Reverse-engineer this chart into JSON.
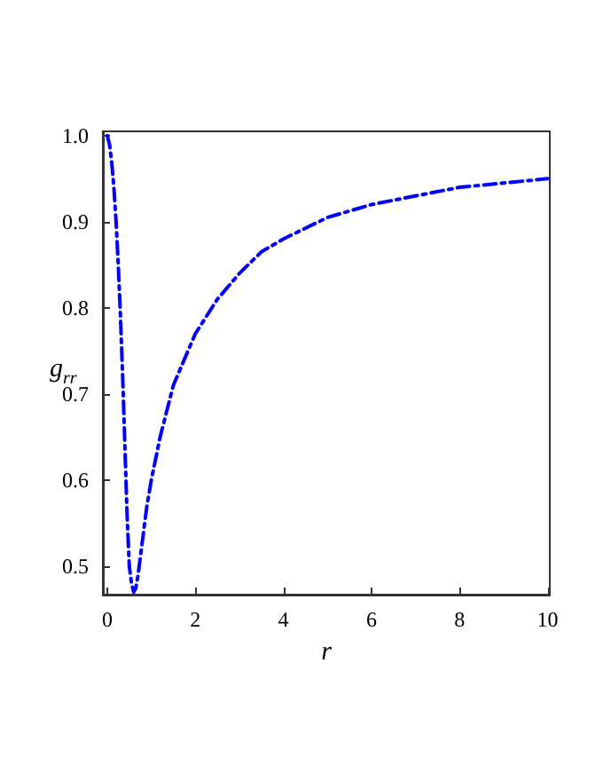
{
  "chart_data": {
    "type": "line",
    "xlabel": "r",
    "ylabel": "g$_{rr}$",
    "series": [
      {
        "color": "#0000ff",
        "x": [
          0,
          0.05,
          0.1,
          0.15,
          0.2,
          0.25,
          0.3,
          0.35,
          0.4,
          0.45,
          0.5,
          0.55,
          0.6,
          0.65,
          0.7,
          0.8,
          0.9,
          1.0,
          1.2,
          1.5,
          2,
          2.5,
          3,
          3.5,
          4,
          5,
          6,
          7,
          8,
          9,
          10
        ],
        "values": [
          1.0,
          0.99,
          0.97,
          0.94,
          0.9,
          0.85,
          0.79,
          0.72,
          0.64,
          0.56,
          0.5,
          0.48,
          0.47,
          0.475,
          0.49,
          0.53,
          0.57,
          0.6,
          0.65,
          0.71,
          0.77,
          0.81,
          0.84,
          0.865,
          0.88,
          0.905,
          0.92,
          0.93,
          0.94,
          0.945,
          0.95
        ]
      }
    ],
    "xlim": [
      -0.1,
      10.05
    ],
    "xticks": [
      0,
      2,
      4,
      6,
      8,
      10
    ],
    "ylim": [
      0.467,
      1.005
    ],
    "yticks": [
      0.5,
      0.6,
      0.7,
      0.8,
      0.9,
      {
        "value": 1,
        "label": "1.0"
      }
    ],
    "grid": false,
    "marker": "none",
    "line_style": "dashed"
  }
}
